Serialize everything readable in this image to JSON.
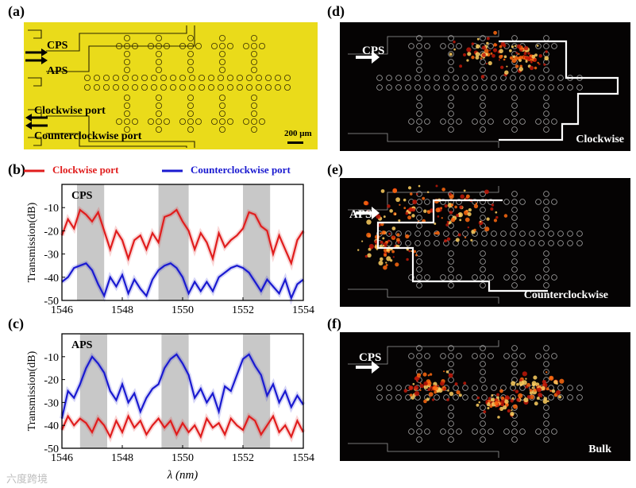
{
  "panel_labels": {
    "a": "(a)",
    "b": "(b)",
    "c": "(c)",
    "d": "(d)",
    "e": "(e)",
    "f": "(f)"
  },
  "micrograph": {
    "labels": {
      "cps": "CPS",
      "aps": "APS",
      "clockwise": "Clockwise port",
      "counterclockwise": "Counterclockwise port"
    },
    "scalebar": "200 μm",
    "bg_color": "#eadb1a"
  },
  "legend": {
    "clockwise": "Clockwise port",
    "counterclockwise": "Counterclockwise port"
  },
  "colors": {
    "clockwise": "#e01d1d",
    "counterclockwise": "#1a1ad0",
    "band": "#c8c8c8",
    "arrow": "#ffffff"
  },
  "chart_data": [
    {
      "type": "line",
      "tag": "CPS",
      "xlabel": "",
      "ylabel": "Transmission(dB)",
      "xlim": [
        1546,
        1554
      ],
      "ylim": [
        -50,
        0
      ],
      "xticks": [
        "1546",
        "1548",
        "1550",
        "1552",
        "1554"
      ],
      "yticks": [
        "-10",
        "-20",
        "-30",
        "-40",
        "-50"
      ],
      "bands": [
        [
          1546.5,
          1547.4
        ],
        [
          1549.2,
          1550.2
        ],
        [
          1552,
          1552.9
        ]
      ],
      "series": [
        {
          "name": "Clockwise port",
          "x": [
            1546,
            1546.2,
            1546.4,
            1546.6,
            1546.8,
            1547,
            1547.2,
            1547.4,
            1547.6,
            1547.8,
            1548,
            1548.2,
            1548.4,
            1548.6,
            1548.8,
            1549,
            1549.2,
            1549.4,
            1549.6,
            1549.8,
            1550,
            1550.2,
            1550.4,
            1550.6,
            1550.8,
            1551,
            1551.2,
            1551.4,
            1551.6,
            1551.8,
            1552,
            1552.2,
            1552.4,
            1552.6,
            1552.8,
            1553,
            1553.2,
            1553.4,
            1553.6,
            1553.8,
            1554
          ],
          "y": [
            -22,
            -15,
            -19,
            -11,
            -13,
            -16,
            -12,
            -20,
            -28,
            -20,
            -24,
            -32,
            -24,
            -22,
            -28,
            -21,
            -25,
            -14,
            -13,
            -11,
            -16,
            -20,
            -28,
            -21,
            -25,
            -32,
            -21,
            -27,
            -24,
            -22,
            -19,
            -12,
            -13,
            -18,
            -20,
            -30,
            -22,
            -28,
            -34,
            -24,
            -20
          ]
        },
        {
          "name": "Counterclockwise port",
          "x": [
            1546,
            1546.2,
            1546.4,
            1546.6,
            1546.8,
            1547,
            1547.2,
            1547.4,
            1547.6,
            1547.8,
            1548,
            1548.2,
            1548.4,
            1548.6,
            1548.8,
            1549,
            1549.2,
            1549.4,
            1549.6,
            1549.8,
            1550,
            1550.2,
            1550.4,
            1550.6,
            1550.8,
            1551,
            1551.2,
            1551.4,
            1551.6,
            1551.8,
            1552,
            1552.2,
            1552.4,
            1552.6,
            1552.8,
            1553,
            1553.2,
            1553.4,
            1553.6,
            1553.8,
            1554
          ],
          "y": [
            -42,
            -40,
            -36,
            -35,
            -34,
            -37,
            -43,
            -48,
            -40,
            -44,
            -39,
            -47,
            -41,
            -45,
            -48,
            -41,
            -37,
            -35,
            -34,
            -36,
            -40,
            -47,
            -42,
            -46,
            -42,
            -46,
            -40,
            -38,
            -36,
            -35,
            -36,
            -38,
            -42,
            -46,
            -41,
            -44,
            -47,
            -41,
            -49,
            -43,
            -41
          ]
        }
      ]
    },
    {
      "type": "line",
      "tag": "APS",
      "xlabel": "λ (nm)",
      "ylabel": "Transmission(dB)",
      "xlim": [
        1546,
        1554
      ],
      "ylim": [
        -50,
        0
      ],
      "xticks": [
        "1546",
        "1548",
        "1550",
        "1552",
        "1554"
      ],
      "yticks": [
        "-10",
        "-20",
        "-30",
        "-40",
        "-50"
      ],
      "bands": [
        [
          1546.6,
          1547.5
        ],
        [
          1549.3,
          1550.2
        ],
        [
          1552,
          1552.9
        ]
      ],
      "series": [
        {
          "name": "Counterclockwise port",
          "x": [
            1546,
            1546.2,
            1546.4,
            1546.6,
            1546.8,
            1547,
            1547.2,
            1547.4,
            1547.6,
            1547.8,
            1548,
            1548.2,
            1548.4,
            1548.6,
            1548.8,
            1549,
            1549.2,
            1549.4,
            1549.6,
            1549.8,
            1550,
            1550.2,
            1550.4,
            1550.6,
            1550.8,
            1551,
            1551.2,
            1551.4,
            1551.6,
            1551.8,
            1552,
            1552.2,
            1552.4,
            1552.6,
            1552.8,
            1553,
            1553.2,
            1553.4,
            1553.6,
            1553.8,
            1554
          ],
          "y": [
            -37,
            -25,
            -28,
            -22,
            -15,
            -10,
            -13,
            -17,
            -25,
            -29,
            -22,
            -30,
            -26,
            -34,
            -28,
            -24,
            -22,
            -15,
            -11,
            -9,
            -13,
            -18,
            -28,
            -24,
            -30,
            -26,
            -34,
            -23,
            -25,
            -18,
            -11,
            -9,
            -14,
            -18,
            -27,
            -22,
            -30,
            -25,
            -32,
            -27,
            -31
          ]
        },
        {
          "name": "Clockwise port",
          "x": [
            1546,
            1546.2,
            1546.4,
            1546.6,
            1546.8,
            1547,
            1547.2,
            1547.4,
            1547.6,
            1547.8,
            1548,
            1548.2,
            1548.4,
            1548.6,
            1548.8,
            1549,
            1549.2,
            1549.4,
            1549.6,
            1549.8,
            1550,
            1550.2,
            1550.4,
            1550.6,
            1550.8,
            1551,
            1551.2,
            1551.4,
            1551.6,
            1551.8,
            1552,
            1552.2,
            1552.4,
            1552.6,
            1552.8,
            1553,
            1553.2,
            1553.4,
            1553.6,
            1553.8,
            1554
          ],
          "y": [
            -42,
            -36,
            -40,
            -37,
            -39,
            -43,
            -37,
            -40,
            -45,
            -38,
            -43,
            -36,
            -41,
            -38,
            -44,
            -40,
            -37,
            -41,
            -38,
            -44,
            -39,
            -43,
            -40,
            -45,
            -37,
            -41,
            -39,
            -44,
            -37,
            -40,
            -42,
            -36,
            -38,
            -44,
            -40,
            -36,
            -43,
            -40,
            -45,
            -38,
            -43
          ]
        }
      ]
    }
  ],
  "imaging": [
    {
      "id": "d",
      "port_label": "CPS",
      "caption": "Clockwise"
    },
    {
      "id": "e",
      "port_label": "APS",
      "caption": "Counterclockwise"
    },
    {
      "id": "f",
      "port_label": "CPS",
      "caption": "Bulk"
    }
  ],
  "watermark": "六度跨境"
}
